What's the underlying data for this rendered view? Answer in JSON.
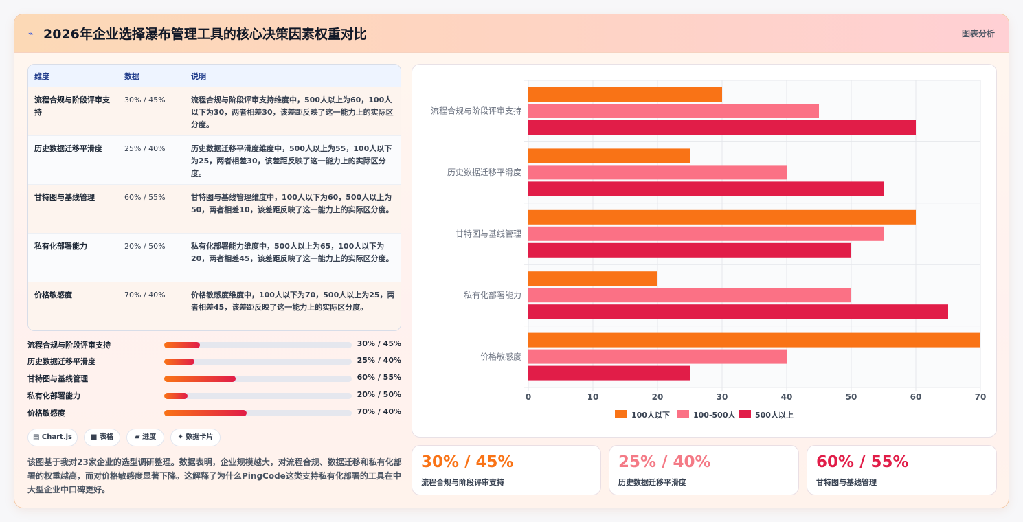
{
  "header": {
    "icon": "sparkle-icon",
    "title": "2026年企业选择瀑布管理工具的核心决策因素权重对比",
    "link": "图表分析"
  },
  "table": {
    "headers": [
      "维度",
      "数据",
      "说明"
    ],
    "rows": [
      {
        "name": "流程合规与阶段评审支持",
        "data": "30% / 45%",
        "desc": "流程合规与阶段评审支持维度中，500人以上为60，100人以下为30，两者相差30，该差距反映了这一能力上的实际区分度。"
      },
      {
        "name": "历史数据迁移平滑度",
        "data": "25% / 40%",
        "desc": "历史数据迁移平滑度维度中，500人以上为55，100人以下为25，两者相差30，该差距反映了这一能力上的实际区分度。"
      },
      {
        "name": "甘特图与基线管理",
        "data": "60% / 55%",
        "desc": "甘特图与基线管理维度中，100人以下为60，500人以上为50，两者相差10，该差距反映了这一能力上的实际区分度。"
      },
      {
        "name": "私有化部署能力",
        "data": "20% / 50%",
        "desc": "私有化部署能力维度中，500人以上为65，100人以下为20，两者相差45，该差距反映了这一能力上的实际区分度。"
      },
      {
        "name": "价格敏感度",
        "data": "70% / 40%",
        "desc": "价格敏感度维度中，100人以下为70，500人以上为25，两者相差45，该差距反映了这一能力上的实际区分度。"
      }
    ]
  },
  "progress": [
    {
      "label": "流程合规与阶段评审支持",
      "value": "30% / 45%",
      "fill": 0.19
    },
    {
      "label": "历史数据迁移平滑度",
      "value": "25% / 40%",
      "fill": 0.16
    },
    {
      "label": "甘特图与基线管理",
      "value": "60% / 55%",
      "fill": 0.38
    },
    {
      "label": "私有化部署能力",
      "value": "20% / 50%",
      "fill": 0.125
    },
    {
      "label": "价格敏感度",
      "value": "70% / 40%",
      "fill": 0.44
    }
  ],
  "chips": [
    {
      "icon": "chart-icon",
      "glyph": "▤",
      "label": "Chart.js"
    },
    {
      "icon": "table-icon",
      "glyph": "■",
      "label": "表格"
    },
    {
      "icon": "progress-icon",
      "glyph": "▰",
      "label": "进度"
    },
    {
      "icon": "card-icon",
      "glyph": "✦",
      "label": "数据卡片"
    }
  ],
  "note": "该图基于我对23家企业的选型调研整理。数据表明，企业规模越大，对流程合规、数据迁移和私有化部署的权重越高，而对价格敏感度显著下降。这解释了为什么PingCode这类支持私有化部署的工具在中大型企业中口碑更好。",
  "stats": [
    {
      "value": "30% / 45%",
      "label": "流程合规与阶段评审支持",
      "color": "#f97316"
    },
    {
      "value": "25% / 40%",
      "label": "历史数据迁移平滑度",
      "color": "#f47a86"
    },
    {
      "value": "60% / 55%",
      "label": "甘特图与基线管理",
      "color": "#e11d48"
    }
  ],
  "chart_data": {
    "type": "bar",
    "orientation": "horizontal",
    "categories": [
      "流程合规与阶段评审支持",
      "历史数据迁移平滑度",
      "甘特图与基线管理",
      "私有化部署能力",
      "价格敏感度"
    ],
    "series": [
      {
        "name": "100人以下",
        "color": "#f97316",
        "values": [
          30,
          25,
          60,
          20,
          70
        ]
      },
      {
        "name": "100-500人",
        "color": "#fb7185",
        "values": [
          45,
          40,
          55,
          50,
          40
        ]
      },
      {
        "name": "500人以上",
        "color": "#e11d48",
        "values": [
          60,
          55,
          50,
          65,
          25
        ]
      }
    ],
    "xlim": [
      0,
      70
    ],
    "xticks": [
      0,
      10,
      20,
      30,
      40,
      50,
      60,
      70
    ],
    "legend": "bottom",
    "grid": true
  }
}
